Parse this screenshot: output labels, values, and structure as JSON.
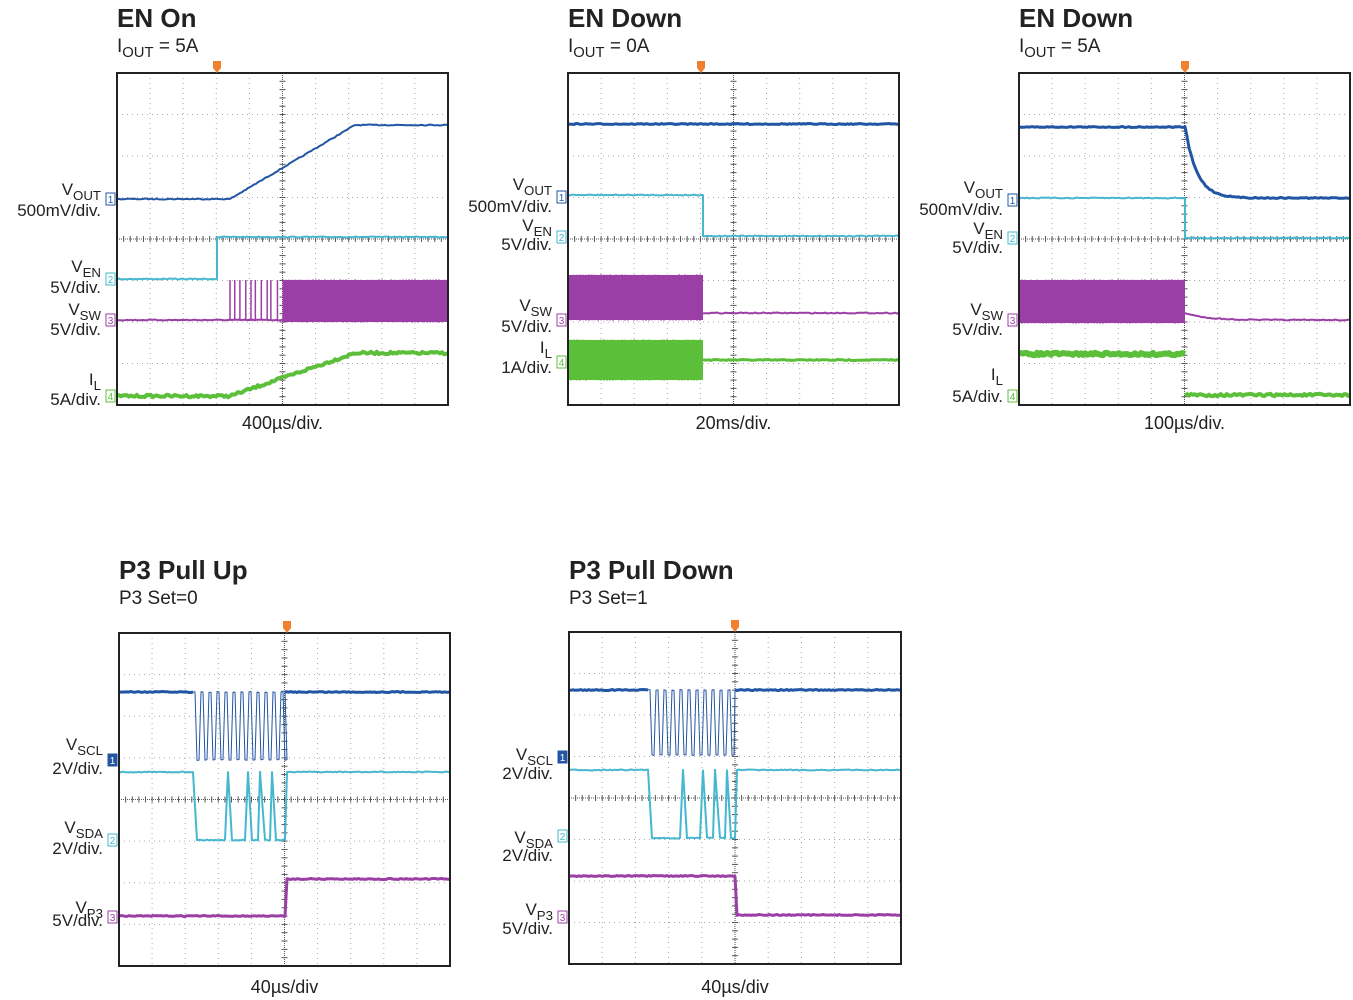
{
  "panels": [
    {
      "title": "EN On",
      "subtitle": {
        "text": "I",
        "sub": "OUT",
        "rest": " = 5A"
      },
      "channels": [
        {
          "name": {
            "text": "V",
            "sub": "OUT"
          },
          "scale": "500mV/div.",
          "number": "1"
        },
        {
          "name": {
            "text": "V",
            "sub": "EN"
          },
          "scale": "5V/div.",
          "number": "2"
        },
        {
          "name": {
            "text": "V",
            "sub": "SW"
          },
          "scale": "5V/div.",
          "number": "3"
        },
        {
          "name": {
            "text": "I",
            "sub": "L"
          },
          "scale": "5A/div.",
          "number": "4"
        }
      ],
      "timebase": "400µs/div."
    },
    {
      "title": "EN Down",
      "subtitle": {
        "text": "I",
        "sub": "OUT",
        "rest": " = 0A"
      },
      "channels": [
        {
          "name": {
            "text": "V",
            "sub": "OUT"
          },
          "scale": "500mV/div.",
          "number": "1"
        },
        {
          "name": {
            "text": "V",
            "sub": "EN"
          },
          "scale": "5V/div.",
          "number": "2"
        },
        {
          "name": {
            "text": "V",
            "sub": "SW"
          },
          "scale": "5V/div.",
          "number": "3"
        },
        {
          "name": {
            "text": "I",
            "sub": "L"
          },
          "scale": "1A/div.",
          "number": "4"
        }
      ],
      "timebase": "20ms/div."
    },
    {
      "title": "EN Down",
      "subtitle": {
        "text": "I",
        "sub": "OUT",
        "rest": " = 5A"
      },
      "channels": [
        {
          "name": {
            "text": "V",
            "sub": "OUT"
          },
          "scale": "500mV/div.",
          "number": "1"
        },
        {
          "name": {
            "text": "V",
            "sub": "EN"
          },
          "scale": "5V/div.",
          "number": "2"
        },
        {
          "name": {
            "text": "V",
            "sub": "SW"
          },
          "scale": "5V/div.",
          "number": "3"
        },
        {
          "name": {
            "text": "I",
            "sub": "L"
          },
          "scale": "5A/div.",
          "number": "4"
        }
      ],
      "timebase": "100µs/div."
    },
    {
      "title": "P3 Pull Up",
      "subtitle": {
        "text": "P3 Set=0"
      },
      "channels": [
        {
          "name": {
            "text": "V",
            "sub": "SCL"
          },
          "scale": "2V/div.",
          "number": "1"
        },
        {
          "name": {
            "text": "V",
            "sub": "SDA"
          },
          "scale": "2V/div.",
          "number": "2"
        },
        {
          "name": {
            "text": "V",
            "sub": "P3"
          },
          "scale": "5V/div.",
          "number": "3"
        }
      ],
      "timebase": "40µs/div"
    },
    {
      "title": "P3 Pull Down",
      "subtitle": {
        "text": "P3 Set=1"
      },
      "channels": [
        {
          "name": {
            "text": "V",
            "sub": "SCL"
          },
          "scale": "2V/div.",
          "number": "1"
        },
        {
          "name": {
            "text": "V",
            "sub": "SDA"
          },
          "scale": "2V/div.",
          "number": "2"
        },
        {
          "name": {
            "text": "V",
            "sub": "P3"
          },
          "scale": "5V/div.",
          "number": "3"
        }
      ],
      "timebase": "40µs/div"
    }
  ]
}
